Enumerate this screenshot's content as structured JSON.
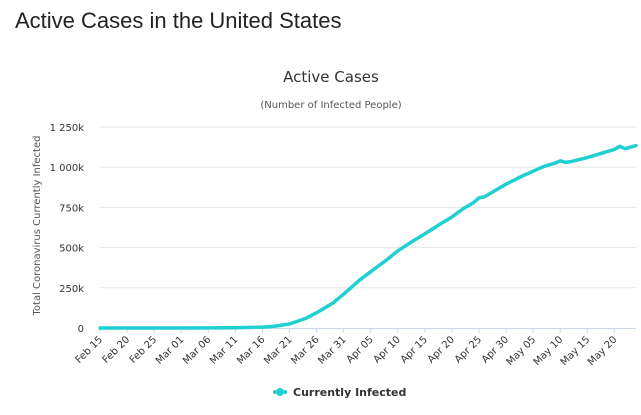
{
  "page": {
    "heading": "Active Cases in the United States"
  },
  "colors": {
    "series": "#1fd0d0",
    "grid": "#e6e6e6",
    "axis": "#ccd6eb",
    "text": "#333333"
  },
  "chart_data": {
    "type": "line",
    "title": "Active Cases",
    "subtitle": "(Number of Infected People)",
    "xlabel": "",
    "ylabel": "Total Coronavirus Currently Infected",
    "ylim": [
      0,
      1250000
    ],
    "y_ticks": [
      0,
      250000,
      500000,
      750000,
      1000000,
      1250000
    ],
    "y_tick_labels": [
      "0",
      "250k",
      "500k",
      "750k",
      "1 000k",
      "1 250k"
    ],
    "x_tick_labels": [
      "Feb 15",
      "Feb 20",
      "Feb 25",
      "Mar 01",
      "Mar 06",
      "Mar 11",
      "Mar 16",
      "Mar 21",
      "Mar 26",
      "Mar 31",
      "Apr 05",
      "Apr 10",
      "Apr 15",
      "Apr 20",
      "Apr 25",
      "Apr 30",
      "May 05",
      "May 10",
      "May 15",
      "May 20"
    ],
    "legend": [
      "Currently Infected"
    ],
    "legend_position": "bottom-center",
    "grid": true,
    "series": [
      {
        "name": "Currently Infected",
        "x": [
          "Feb 15",
          "Feb 20",
          "Feb 25",
          "Mar 01",
          "Mar 06",
          "Mar 11",
          "Mar 14",
          "Mar 16",
          "Mar 18",
          "Mar 21",
          "Mar 24",
          "Mar 26",
          "Mar 29",
          "Mar 31",
          "Apr 03",
          "Apr 05",
          "Apr 08",
          "Apr 10",
          "Apr 13",
          "Apr 15",
          "Apr 18",
          "Apr 20",
          "Apr 22",
          "Apr 24",
          "Apr 25",
          "Apr 26",
          "Apr 28",
          "Apr 30",
          "May 03",
          "May 05",
          "May 07",
          "May 09",
          "May 10",
          "May 11",
          "May 12",
          "May 15",
          "May 18",
          "May 20",
          "May 21",
          "May 22",
          "May 24"
        ],
        "day": [
          0,
          5,
          10,
          15,
          20,
          25,
          28,
          30,
          32,
          35,
          38,
          40,
          43,
          45,
          48,
          50,
          53,
          55,
          58,
          60,
          63,
          65,
          67,
          69,
          70,
          71,
          73,
          75,
          78,
          80,
          82,
          84,
          85,
          86,
          87,
          90,
          93,
          95,
          96,
          97,
          99
        ],
        "values": [
          12,
          25,
          40,
          60,
          350,
          1500,
          3500,
          5500,
          10000,
          25000,
          60000,
          95000,
          155000,
          210000,
          300000,
          350000,
          425000,
          480000,
          545000,
          585000,
          650000,
          690000,
          740000,
          780000,
          810000,
          815000,
          855000,
          895000,
          945000,
          975000,
          1005000,
          1025000,
          1040000,
          1030000,
          1035000,
          1060000,
          1090000,
          1110000,
          1130000,
          1115000,
          1135000
        ]
      }
    ]
  }
}
